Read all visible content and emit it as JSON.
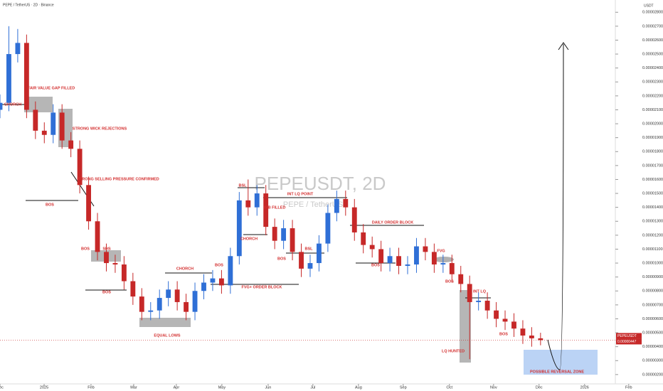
{
  "chart_data": {
    "type": "candlestick",
    "header": "PEPE / TetherUS · 2D · Binance",
    "watermark_title": "PEPEUSDT, 2D",
    "watermark_subtitle": "PEPE / TetherUS",
    "y_unit": "USDT",
    "symbol_tag": "PEPEUSDT",
    "last_price": {
      "value": 4.47e-06,
      "label": "0.00000447"
    },
    "up_color": "#2f6fd6",
    "down_color": "#c62828",
    "open": [
      2.1e-05,
      2.15e-05,
      2.5e-05,
      2.58e-05,
      2.1e-05,
      1.95e-05,
      1.92e-05,
      2.08e-05,
      1.88e-05,
      1.82e-05,
      1.56e-05,
      1.3e-05,
      1.08e-05,
      1e-05,
      9.9e-06,
      8.7e-06,
      7.6e-06,
      6.5e-06,
      6.6e-06,
      7.5e-06,
      8.1e-06,
      7.2e-06,
      6.5e-06,
      8e-06,
      8.6e-06,
      8.9e-06,
      8.4e-06,
      1.05e-05,
      1.45e-05,
      1.4e-05,
      1.5e-05,
      1.26e-05,
      1.16e-05,
      1.25e-05,
      1.08e-05,
      9.6e-06,
      1e-05,
      1.14e-05,
      1.36e-05,
      1.46e-05,
      1.4e-05,
      1.22e-05,
      1.13e-05,
      1.1e-05,
      1e-05,
      1.05e-05,
      9.8e-06,
      9.9e-06,
      1.12e-05,
      1.08e-05,
      9.9e-06,
      1e-05,
      9.2e-06,
      8.5e-06,
      7.2e-06,
      7.3e-06,
      6.6e-06,
      6e-06,
      5.8e-06,
      5.3e-06,
      4.8e-06,
      4.6e-06
    ],
    "high": [
      2.21e-05,
      2.7e-05,
      2.68e-05,
      2.64e-05,
      2.16e-05,
      2.01e-05,
      2.14e-05,
      2.14e-05,
      1.94e-05,
      1.88e-05,
      1.62e-05,
      1.36e-05,
      1.14e-05,
      1.06e-05,
      1.05e-05,
      9.3e-06,
      8.2e-06,
      7.2e-06,
      8.1e-06,
      8.7e-06,
      8.7e-06,
      7.8e-06,
      8.6e-06,
      9.2e-06,
      9.5e-06,
      9.5e-06,
      1.11e-05,
      1.51e-05,
      1.6e-05,
      1.56e-05,
      1.56e-05,
      1.32e-05,
      1.31e-05,
      1.31e-05,
      1.14e-05,
      1.06e-05,
      1.2e-05,
      1.42e-05,
      1.52e-05,
      1.52e-05,
      1.46e-05,
      1.28e-05,
      1.19e-05,
      1.16e-05,
      1.11e-05,
      1.11e-05,
      1.05e-05,
      1.18e-05,
      1.18e-05,
      1.14e-05,
      1.06e-05,
      1.06e-05,
      9.8e-06,
      9.1e-06,
      7.9e-06,
      7.9e-06,
      7.2e-06,
      6.6e-06,
      6.4e-06,
      5.9e-06,
      5.4e-06,
      5e-06
    ],
    "low": [
      2.04e-05,
      2.09e-05,
      2.44e-05,
      2.04e-05,
      1.89e-05,
      1.86e-05,
      1.86e-05,
      1.82e-05,
      1.76e-05,
      1.5e-05,
      1.24e-05,
      1.02e-05,
      9.4e-06,
      9.3e-06,
      8.1e-06,
      7e-06,
      5.9e-06,
      5.9e-06,
      6e-06,
      6.9e-06,
      6.6e-06,
      5.9e-06,
      5.9e-06,
      7.4e-06,
      8e-06,
      7.8e-06,
      7.8e-06,
      9.9e-06,
      1.34e-05,
      1.34e-05,
      1.2e-05,
      1.1e-05,
      1.1e-05,
      1.02e-05,
      9e-06,
      9e-06,
      9.4e-06,
      1.08e-05,
      1.3e-05,
      1.34e-05,
      1.16e-05,
      1.07e-05,
      1.04e-05,
      9.4e-06,
      9.4e-06,
      9.2e-06,
      9.2e-06,
      9.3e-06,
      1.02e-05,
      9.3e-06,
      9.3e-06,
      8.6e-06,
      7.9e-06,
      3.1e-06,
      6.6e-06,
      6e-06,
      5.4e-06,
      5.2e-06,
      4.7e-06,
      4.2e-06,
      4e-06,
      4.1e-06
    ],
    "close": [
      2.15e-05,
      2.5e-05,
      2.58e-05,
      2.1e-05,
      1.95e-05,
      1.92e-05,
      2.08e-05,
      1.88e-05,
      1.82e-05,
      1.56e-05,
      1.3e-05,
      1.08e-05,
      1e-05,
      9.9e-06,
      8.7e-06,
      7.6e-06,
      6.5e-06,
      6.6e-06,
      7.5e-06,
      8.1e-06,
      7.2e-06,
      6.5e-06,
      8e-06,
      8.6e-06,
      8.9e-06,
      8.4e-06,
      1.05e-05,
      1.45e-05,
      1.4e-05,
      1.5e-05,
      1.26e-05,
      1.16e-05,
      1.25e-05,
      1.08e-05,
      9.6e-06,
      1e-05,
      1.14e-05,
      1.36e-05,
      1.46e-05,
      1.4e-05,
      1.22e-05,
      1.13e-05,
      1.1e-05,
      1e-05,
      1.05e-05,
      9.8e-06,
      9.9e-06,
      1.12e-05,
      1.08e-05,
      9.9e-06,
      1e-05,
      9.2e-06,
      8.5e-06,
      7.2e-06,
      7.3e-06,
      6.6e-06,
      6e-06,
      5.8e-06,
      5.3e-06,
      4.8e-06,
      4.6e-06,
      4.47e-06
    ],
    "xlim": [
      0,
      69.2
    ],
    "xticks": [
      {
        "value": 0,
        "label": "Dec"
      },
      {
        "value": 4.98,
        "label": "2025"
      },
      {
        "value": 10.27,
        "label": "Feb"
      },
      {
        "value": 15.09,
        "label": "Mar"
      },
      {
        "value": 19.9,
        "label": "Apr"
      },
      {
        "value": 25.04,
        "label": "May"
      },
      {
        "value": 30.26,
        "label": "Jun"
      },
      {
        "value": 35.31,
        "label": "Jul"
      },
      {
        "value": 40.45,
        "label": "Aug"
      },
      {
        "value": 45.5,
        "label": "Sep"
      },
      {
        "value": 50.72,
        "label": "Oct"
      },
      {
        "value": 55.7,
        "label": "Nov"
      },
      {
        "value": 60.83,
        "label": "Dec"
      },
      {
        "value": 65.97,
        "label": "2026"
      },
      {
        "value": 70.95,
        "label": "Feb"
      }
    ],
    "ylim": [
      1.33e-06,
      2.888e-05
    ],
    "yticks": [
      {
        "value": 2e-06,
        "label": "0.00000200"
      },
      {
        "value": 3e-06,
        "label": "0.00000300"
      },
      {
        "value": 4e-06,
        "label": "0.00000400"
      },
      {
        "value": 5e-06,
        "label": "0.00000500"
      },
      {
        "value": 6e-06,
        "label": "0.00000600"
      },
      {
        "value": 7e-06,
        "label": "0.00000700"
      },
      {
        "value": 8e-06,
        "label": "0.00000800"
      },
      {
        "value": 9e-06,
        "label": "0.00000900"
      },
      {
        "value": 1e-05,
        "label": "0.00001000"
      },
      {
        "value": 1.1e-05,
        "label": "0.00001100"
      },
      {
        "value": 1.2e-05,
        "label": "0.00001200"
      },
      {
        "value": 1.3e-05,
        "label": "0.00001300"
      },
      {
        "value": 1.4e-05,
        "label": "0.00001400"
      },
      {
        "value": 1.5e-05,
        "label": "0.00001500"
      },
      {
        "value": 1.6e-05,
        "label": "0.00001600"
      },
      {
        "value": 1.7e-05,
        "label": "0.00001700"
      },
      {
        "value": 1.8e-05,
        "label": "0.00001800"
      },
      {
        "value": 1.9e-05,
        "label": "0.00001900"
      },
      {
        "value": 2e-05,
        "label": "0.00002000"
      },
      {
        "value": 2.1e-05,
        "label": "0.00002100"
      },
      {
        "value": 2.2e-05,
        "label": "0.00002200"
      },
      {
        "value": 2.3e-05,
        "label": "0.00002300"
      },
      {
        "value": 2.4e-05,
        "label": "0.00002400"
      },
      {
        "value": 2.5e-05,
        "label": "0.00002500"
      },
      {
        "value": 2.6e-05,
        "label": "0.00002600"
      },
      {
        "value": 2.7e-05,
        "label": "0.00002700"
      },
      {
        "value": 2.8e-05,
        "label": "0.00002800"
      }
    ],
    "grid": false,
    "annotations": [
      "FAIR VALUE GAP FILLED",
      "CHORCH",
      "STRONG WICK REJECTIONS",
      "STRONG SELLING PRESSURE CONFIRMED",
      "BOS",
      "SHS",
      "BOS",
      "BOS",
      "EQUAL LOWS",
      "CHORCH",
      "BOS",
      "FVG+ ORDER BLOCK",
      "BSL",
      "INT LQ POINT",
      "IMB FILLED",
      "CHORCH",
      "BOS",
      "BSL",
      "DAILY ORDER BLOCK",
      "BOS",
      "FVG",
      "BOS",
      "INT LQ",
      "BOS",
      "LQ HUNTED",
      "POSSIBLE REVERSAL ZONE"
    ]
  }
}
